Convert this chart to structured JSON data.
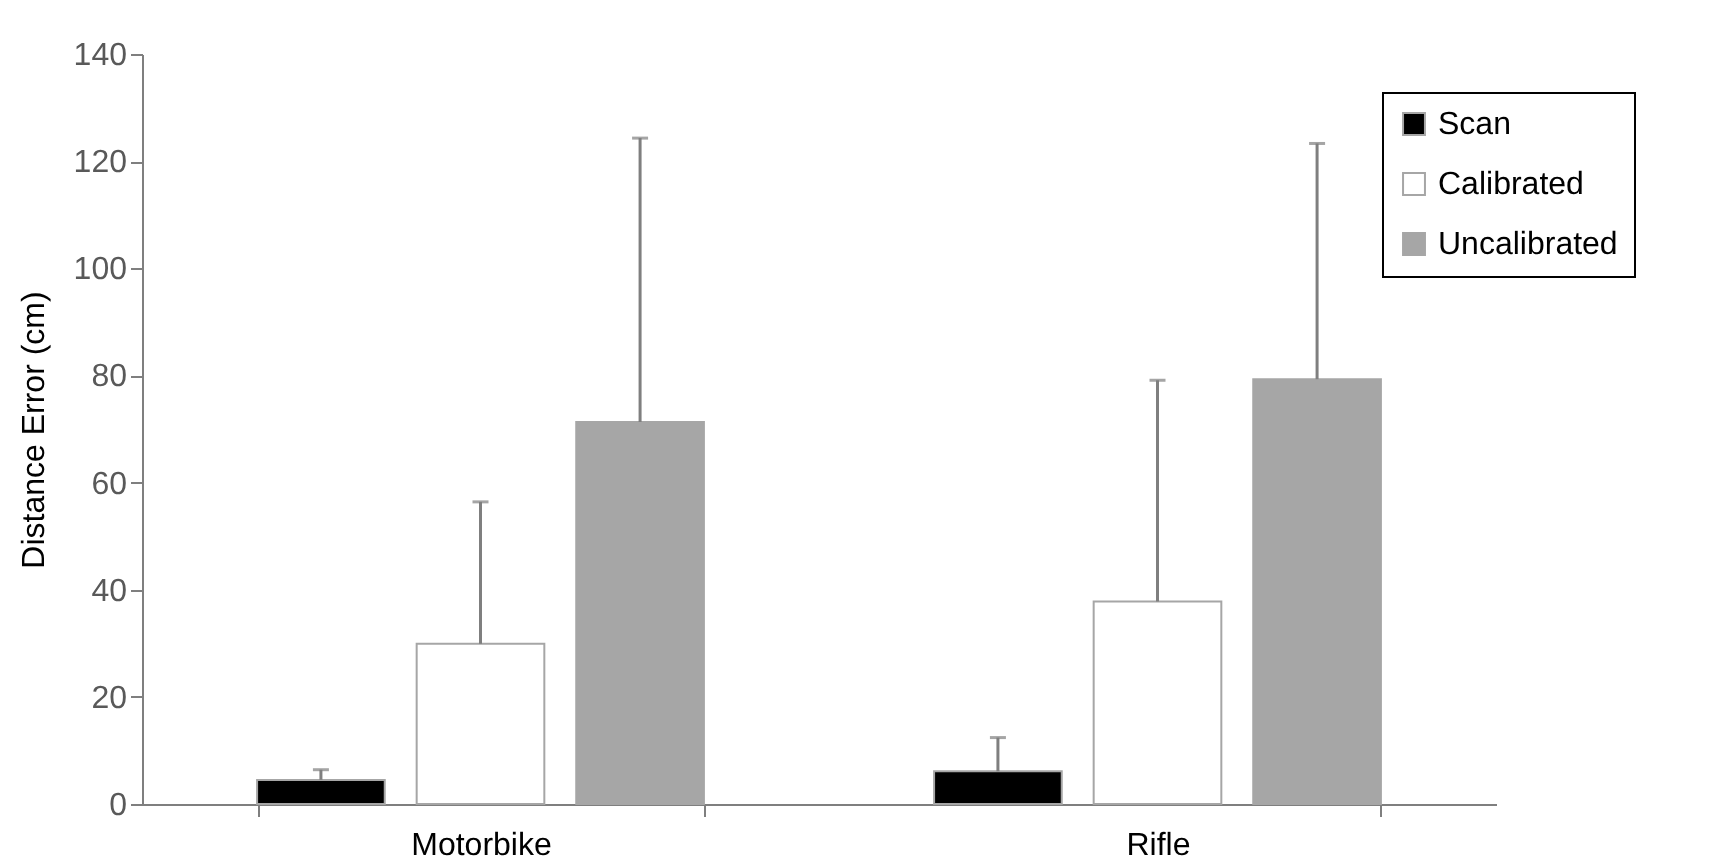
{
  "chart_data": {
    "type": "bar",
    "ylabel": "Distance Error (cm)",
    "categories": [
      "Motorbike",
      "Rifle"
    ],
    "series": [
      {
        "name": "Scan",
        "color": "#000000",
        "values": [
          4.5,
          6.1
        ],
        "errors": [
          [
            4.5,
            6.4
          ],
          [
            6.1,
            12.4
          ]
        ]
      },
      {
        "name": "Calibrated",
        "color": "#ffffff",
        "values": [
          29.9,
          37.8
        ],
        "errors": [
          [
            29.9,
            56.4
          ],
          [
            37.8,
            79.1
          ]
        ]
      },
      {
        "name": "Uncalibrated",
        "color": "#a6a6a6",
        "values": [
          71.3,
          79.3
        ],
        "errors": [
          [
            71.3,
            124.3
          ],
          [
            79.3,
            123.3
          ]
        ]
      }
    ],
    "ylim": [
      0,
      140
    ],
    "yticks": [
      0,
      20,
      40,
      60,
      80,
      100,
      120,
      140
    ],
    "grid": false,
    "legend": "top right"
  }
}
